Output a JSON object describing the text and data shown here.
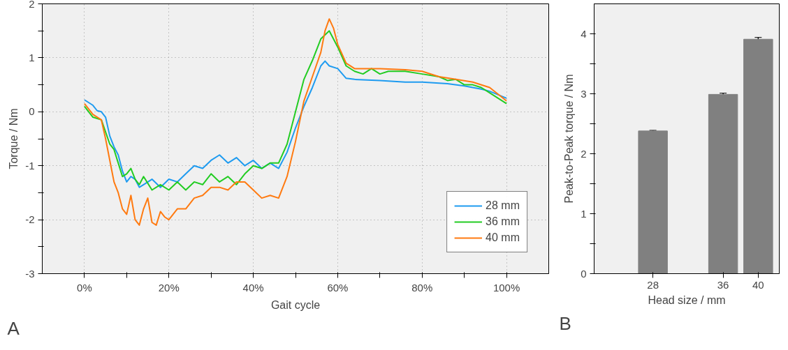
{
  "chart_data": [
    {
      "type": "line",
      "xlabel": "Gait cycle",
      "ylabel": "Torque / Nm",
      "annotations": [
        "A"
      ],
      "xlim": [
        -10,
        110
      ],
      "ylim": [
        -3,
        2
      ],
      "xticks": [
        {
          "value": 0,
          "label": "0%"
        },
        {
          "value": 10,
          "label": null
        },
        {
          "value": 20,
          "label": "20%"
        },
        {
          "value": 30,
          "label": null
        },
        {
          "value": 40,
          "label": "40%"
        },
        {
          "value": 50,
          "label": null
        },
        {
          "value": 60,
          "label": "60%"
        },
        {
          "value": 70,
          "label": null
        },
        {
          "value": 80,
          "label": "80%"
        },
        {
          "value": 90,
          "label": null
        },
        {
          "value": 100,
          "label": "100%"
        }
      ],
      "yticks": [
        -3,
        {
          "value": -2.5,
          "label": null
        },
        -2,
        {
          "value": -1.5,
          "label": null
        },
        -1,
        {
          "value": -0.5,
          "label": null
        },
        0,
        {
          "value": 0.5,
          "label": null
        },
        1,
        {
          "value": 1.5,
          "label": null
        },
        2
      ],
      "grid": true,
      "legend": "bottom right",
      "line_style": "solid",
      "marker": "none",
      "series": [
        {
          "name": "28 mm",
          "color": "#1e9bf0",
          "x": [
            0,
            2,
            3,
            4,
            5,
            6,
            7,
            8,
            9,
            10,
            11,
            12,
            13,
            14,
            16,
            18,
            20,
            22,
            24,
            26,
            28,
            30,
            32,
            34,
            36,
            38,
            40,
            42,
            44,
            46,
            48,
            50,
            52,
            54,
            56,
            57,
            58,
            60,
            62,
            64,
            70,
            76,
            80,
            86,
            90,
            94,
            96,
            100
          ],
          "values": [
            0.22,
            0.12,
            0.02,
            0.0,
            -0.1,
            -0.45,
            -0.65,
            -0.8,
            -1.1,
            -1.3,
            -1.2,
            -1.25,
            -1.4,
            -1.35,
            -1.25,
            -1.4,
            -1.25,
            -1.3,
            -1.15,
            -1.0,
            -1.05,
            -0.9,
            -0.8,
            -0.95,
            -0.85,
            -1.0,
            -0.9,
            -1.05,
            -0.95,
            -1.05,
            -0.75,
            -0.3,
            0.1,
            0.45,
            0.85,
            0.94,
            0.85,
            0.8,
            0.62,
            0.6,
            0.58,
            0.55,
            0.55,
            0.52,
            0.48,
            0.42,
            0.38,
            0.25
          ]
        },
        {
          "name": "36 mm",
          "color": "#22cc22",
          "x": [
            0,
            2,
            4,
            6,
            7,
            8,
            9,
            10,
            11,
            12,
            13,
            14,
            16,
            18,
            20,
            22,
            24,
            26,
            28,
            30,
            32,
            34,
            36,
            38,
            40,
            42,
            44,
            46,
            48,
            50,
            52,
            54,
            56,
            58,
            60,
            62,
            64,
            66,
            68,
            70,
            72,
            76,
            80,
            84,
            86,
            88,
            90,
            92,
            94,
            96,
            100
          ],
          "values": [
            0.1,
            -0.1,
            -0.15,
            -0.6,
            -0.7,
            -0.95,
            -1.2,
            -1.15,
            -1.05,
            -1.25,
            -1.35,
            -1.2,
            -1.45,
            -1.35,
            -1.45,
            -1.3,
            -1.45,
            -1.3,
            -1.35,
            -1.15,
            -1.3,
            -1.2,
            -1.35,
            -1.15,
            -1.0,
            -1.05,
            -0.95,
            -0.95,
            -0.6,
            0.0,
            0.6,
            0.95,
            1.35,
            1.5,
            1.2,
            0.85,
            0.75,
            0.7,
            0.8,
            0.7,
            0.75,
            0.75,
            0.7,
            0.65,
            0.58,
            0.6,
            0.5,
            0.5,
            0.45,
            0.35,
            0.15
          ]
        },
        {
          "name": "40 mm",
          "color": "#ff7a10",
          "x": [
            0,
            2,
            4,
            5,
            6,
            7,
            8,
            9,
            10,
            11,
            12,
            13,
            14,
            15,
            16,
            17,
            18,
            19,
            20,
            22,
            24,
            26,
            28,
            30,
            32,
            34,
            36,
            38,
            40,
            42,
            44,
            46,
            48,
            50,
            52,
            54,
            56,
            57,
            58,
            59,
            60,
            62,
            64,
            70,
            76,
            80,
            84,
            88,
            92,
            96,
            100
          ],
          "values": [
            0.15,
            -0.05,
            -0.15,
            -0.5,
            -0.9,
            -1.3,
            -1.5,
            -1.8,
            -1.9,
            -1.55,
            -2.0,
            -2.1,
            -1.8,
            -1.6,
            -2.05,
            -2.1,
            -1.85,
            -1.95,
            -2.0,
            -1.8,
            -1.8,
            -1.6,
            -1.55,
            -1.4,
            -1.4,
            -1.45,
            -1.3,
            -1.3,
            -1.45,
            -1.6,
            -1.55,
            -1.6,
            -1.2,
            -0.55,
            0.2,
            0.65,
            1.1,
            1.5,
            1.72,
            1.55,
            1.25,
            0.9,
            0.8,
            0.8,
            0.78,
            0.75,
            0.65,
            0.6,
            0.55,
            0.45,
            0.2
          ]
        }
      ]
    },
    {
      "type": "bar",
      "xlabel": "Head size / mm",
      "ylabel": "Peak-to-Peak torque / Nm",
      "annotations": [
        "B"
      ],
      "x": [
        28,
        36,
        40
      ],
      "values": [
        2.38,
        2.99,
        3.91
      ],
      "errors": [
        0.01,
        0.02,
        0.03
      ],
      "color": "#808080",
      "xlim": [
        21.3,
        42.4
      ],
      "xticks": [
        28,
        36,
        40
      ],
      "ylim": [
        0,
        4.5
      ],
      "yticks": [
        0,
        {
          "value": 0.5,
          "label": null
        },
        1,
        {
          "value": 1.5,
          "label": null
        },
        2,
        {
          "value": 2.5,
          "label": null
        },
        3,
        {
          "value": 3.5,
          "label": null
        },
        4
      ]
    }
  ]
}
